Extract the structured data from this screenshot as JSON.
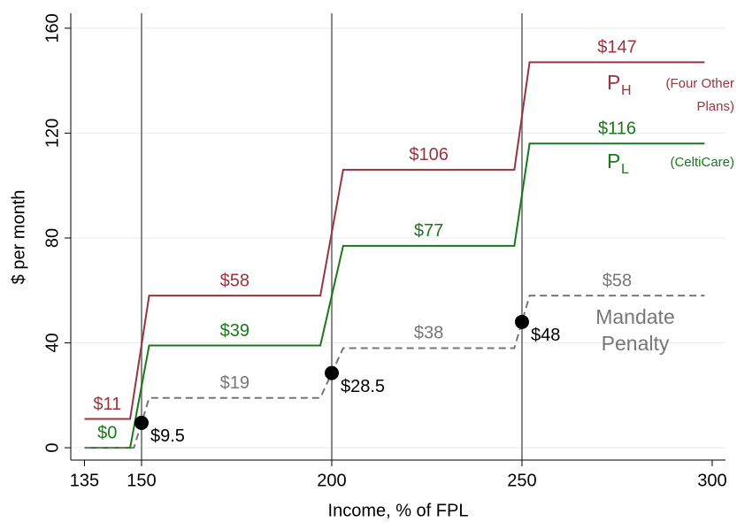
{
  "chart_data": {
    "type": "step-line",
    "x_label": "Income, % of FPL",
    "y_label": "$ per month",
    "xlim": [
      131.4,
      303.5
    ],
    "ylim": [
      -4.7,
      165.7
    ],
    "xticks": [
      135,
      150,
      200,
      250,
      300
    ],
    "yticks": [
      0,
      40,
      80,
      120,
      160
    ],
    "vlines": [
      150,
      200,
      250
    ],
    "grid": true,
    "series": [
      {
        "name": "P",
        "name_sub": "H",
        "name_note": [
          "(Four Other",
          "Plans)"
        ],
        "color": "#983440",
        "dash": false,
        "x": [
          135,
          147,
          152,
          197,
          203,
          248,
          252,
          298
        ],
        "values": [
          11,
          11,
          58,
          58,
          106,
          106,
          147,
          147
        ],
        "value_labels": [
          "$11",
          null,
          "$58",
          null,
          "$106",
          null,
          "$147",
          null
        ]
      },
      {
        "name": "P",
        "name_sub": "L",
        "name_note": [
          "(CeltiCare)"
        ],
        "color": "#1a781a",
        "dash": false,
        "x": [
          135,
          147,
          152,
          197,
          203,
          248,
          252,
          298
        ],
        "values": [
          0,
          0,
          39,
          39,
          77,
          77,
          116,
          116
        ],
        "value_labels": [
          "$0",
          null,
          "$39",
          null,
          "$77",
          null,
          "$116",
          null
        ]
      },
      {
        "name": [
          "Mandate",
          "Penalty"
        ],
        "color": "#777777",
        "dash": true,
        "x": [
          135,
          148,
          152,
          197,
          203,
          248,
          252,
          298
        ],
        "values": [
          0,
          0,
          19,
          19,
          38,
          38,
          58,
          58
        ],
        "value_labels": [
          null,
          null,
          "$19",
          null,
          "$38",
          null,
          "$58",
          null
        ]
      }
    ],
    "points": {
      "color": "#000000",
      "x": [
        150,
        200,
        250
      ],
      "values": [
        9.5,
        28.5,
        48
      ],
      "value_labels": [
        "$9.5",
        "$28.5",
        "$48"
      ]
    }
  }
}
